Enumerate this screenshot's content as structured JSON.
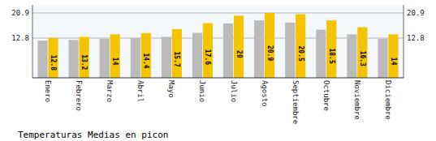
{
  "chart_data": {
    "type": "bar",
    "title": "Temperaturas Medias en picon",
    "categories": [
      "Enero",
      "Febrero",
      "Marzo",
      "Abril",
      "Mayo",
      "Junio",
      "Julio",
      "Agosto",
      "Septiembre",
      "Octubre",
      "Noviembre",
      "Diciembre"
    ],
    "series": [
      {
        "color": "#BBBBBB",
        "values": [
          12.0,
          12.2,
          12.6,
          12.8,
          13.2,
          14.5,
          17.5,
          18.5,
          17.8,
          15.5,
          14.0,
          12.6
        ]
      },
      {
        "color": "#F5C400",
        "data_labels": true,
        "values": [
          12.8,
          13.2,
          14.0,
          14.4,
          15.7,
          17.6,
          20.0,
          20.9,
          20.5,
          18.5,
          16.3,
          14.0
        ]
      }
    ],
    "ylim": [
      0,
      23.5
    ],
    "yticks": [
      12.8,
      20.9
    ],
    "y2lim": [
      0,
      23.5
    ],
    "y2ticks": [
      12.8,
      20.9
    ],
    "grid": true
  }
}
